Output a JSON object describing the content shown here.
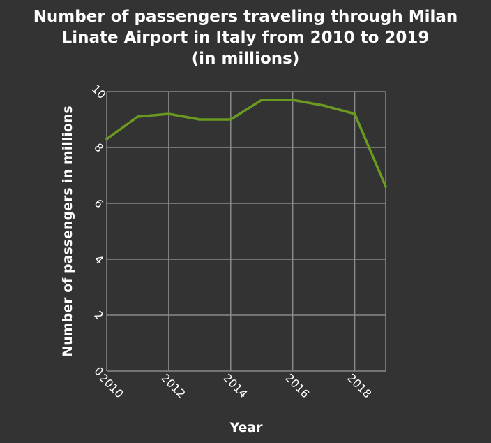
{
  "colors": {
    "background": "#333333",
    "grid": "#8a8a8a",
    "text": "#ffffff",
    "line": "#6a9a1f"
  },
  "chart_data": {
    "type": "line",
    "title_lines": [
      "Number of passengers traveling through Milan",
      "Linate Airport in Italy from 2010 to 2019",
      "(in millions)"
    ],
    "xlabel": "Year",
    "ylabel": "Number of passengers in millions",
    "x_ticks": [
      "2010",
      "2012",
      "2014",
      "2016",
      "2018"
    ],
    "y_ticks": [
      "0",
      "2",
      "4",
      "6",
      "8",
      "10"
    ],
    "xlim": [
      2010,
      2019
    ],
    "ylim": [
      0,
      10
    ],
    "grid": true,
    "series": [
      {
        "x": [
          2010,
          2011,
          2012,
          2013,
          2014,
          2015,
          2016,
          2017,
          2018,
          2019
        ],
        "values": [
          8.3,
          9.1,
          9.2,
          9.0,
          9.0,
          9.7,
          9.7,
          9.5,
          9.2,
          6.6
        ]
      }
    ]
  }
}
